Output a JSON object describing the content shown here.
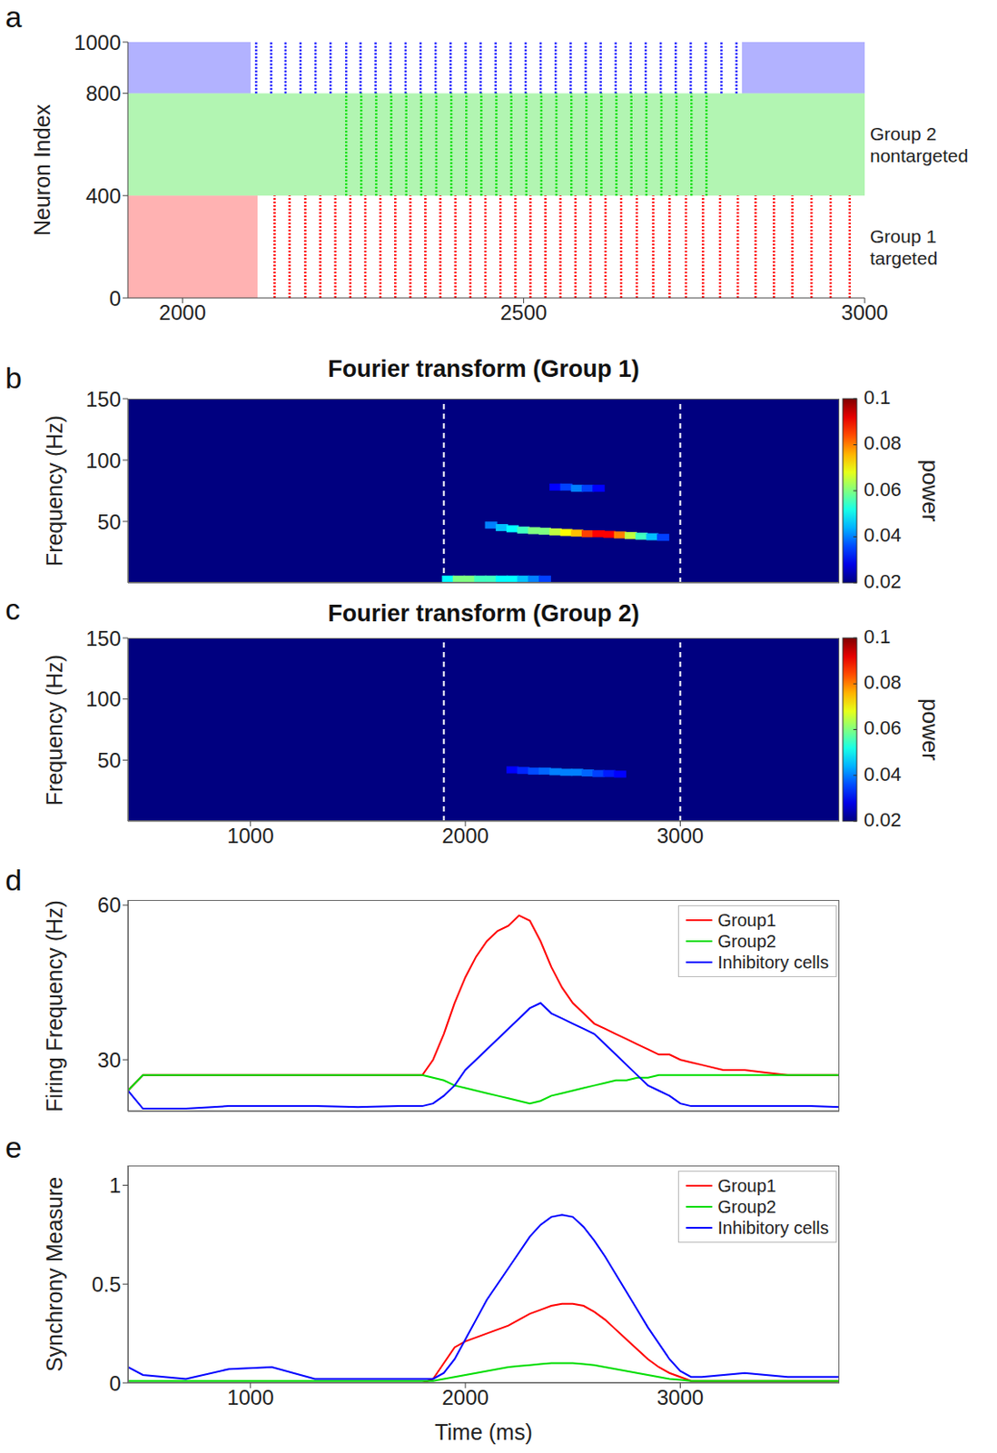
{
  "chart_data": [
    {
      "panel_label": "a",
      "type": "raster",
      "ylabel": "Neuron Index",
      "xlim": [
        1920,
        3000
      ],
      "xticks": [
        2000,
        2500,
        3000
      ],
      "ylim": [
        0,
        1000
      ],
      "yticks": [
        0,
        400,
        800,
        1000
      ],
      "series": [
        {
          "color": "#0000ff",
          "index_range": [
            800,
            1000
          ],
          "async": [
            [
              1920,
              2100
            ],
            [
              2820,
              3000
            ]
          ],
          "volleys": [
            2108,
            2130,
            2151,
            2173,
            2195,
            2217,
            2240,
            2261,
            2283,
            2305,
            2327,
            2349,
            2371,
            2393,
            2415,
            2437,
            2459,
            2481,
            2503,
            2525,
            2547,
            2569,
            2591,
            2613,
            2635,
            2657,
            2679,
            2701,
            2723,
            2745,
            2767,
            2790,
            2812
          ]
        },
        {
          "color": "#00dd00",
          "index_range": [
            400,
            800
          ],
          "label": "Group 2 nontargeted",
          "async": [
            [
              1920,
              3000
            ]
          ],
          "volleys": [
            2240,
            2262,
            2284,
            2306,
            2328,
            2350,
            2372,
            2394,
            2416,
            2438,
            2460,
            2482,
            2504,
            2526,
            2548,
            2570,
            2592,
            2614,
            2636,
            2658,
            2680,
            2702,
            2724,
            2746,
            2768
          ]
        },
        {
          "color": "#ff0000",
          "index_range": [
            0,
            400
          ],
          "label": "Group 1 targeted",
          "async": [
            [
              1920,
              2110
            ]
          ],
          "volleys": [
            2135,
            2157,
            2180,
            2202,
            2224,
            2246,
            2268,
            2290,
            2312,
            2334,
            2356,
            2378,
            2400,
            2422,
            2444,
            2466,
            2488,
            2510,
            2532,
            2554,
            2576,
            2598,
            2620,
            2643,
            2666,
            2690,
            2714,
            2738,
            2763,
            2788,
            2814,
            2840,
            2867,
            2894,
            2922,
            2950,
            2978
          ]
        }
      ]
    },
    {
      "panel_label": "b",
      "type": "heatmap",
      "title": "Fourier transform (Group 1)",
      "ylabel": "Frequency (Hz)",
      "xlim": [
        430,
        3740
      ],
      "ylim": [
        0,
        150
      ],
      "yticks": [
        50,
        100,
        150
      ],
      "tick_labels": "y",
      "vlines": [
        1900,
        3000
      ],
      "background": 0.02,
      "colorbar": {
        "label": "power",
        "range": [
          0.02,
          0.1
        ],
        "ticks": [
          0.02,
          0.04,
          0.06,
          0.08,
          0.1
        ]
      },
      "ridges": [
        {
          "time": [
            2120,
            2170,
            2220,
            2270,
            2320,
            2370,
            2420,
            2470,
            2520,
            2570,
            2620,
            2670,
            2720,
            2770,
            2820,
            2870,
            2920
          ],
          "freq": [
            47,
            45,
            44,
            43,
            42.5,
            42,
            41.5,
            41,
            40.5,
            40,
            40,
            39.5,
            39,
            38.5,
            38,
            37.5,
            37
          ],
          "power": [
            0.04,
            0.045,
            0.05,
            0.055,
            0.06,
            0.06,
            0.065,
            0.07,
            0.075,
            0.085,
            0.09,
            0.09,
            0.08,
            0.065,
            0.055,
            0.045,
            0.035
          ]
        },
        {
          "time": [
            1920,
            1970,
            2020,
            2070,
            2120,
            2170,
            2220,
            2270,
            2320,
            2370
          ],
          "freq": [
            3,
            3,
            3,
            3,
            3,
            3,
            3,
            3,
            3,
            3
          ],
          "power": [
            0.05,
            0.06,
            0.06,
            0.055,
            0.055,
            0.05,
            0.05,
            0.045,
            0.04,
            0.035
          ]
        },
        {
          "time": [
            2420,
            2470,
            2520,
            2570,
            2620
          ],
          "freq": [
            78,
            78,
            77,
            77,
            77
          ],
          "power": [
            0.03,
            0.035,
            0.04,
            0.035,
            0.03
          ]
        }
      ]
    },
    {
      "panel_label": "c",
      "type": "heatmap",
      "title": "Fourier transform (Group 2)",
      "ylabel": "Frequency (Hz)",
      "xlim": [
        430,
        3740
      ],
      "xticks": [
        1000,
        2000,
        3000
      ],
      "ylim": [
        0,
        150
      ],
      "yticks": [
        50,
        100,
        150
      ],
      "vlines": [
        1900,
        3000
      ],
      "background": 0.02,
      "colorbar": {
        "label": "power",
        "range": [
          0.02,
          0.1
        ],
        "ticks": [
          0.02,
          0.04,
          0.06,
          0.08,
          0.1
        ]
      },
      "ridges": [
        {
          "time": [
            2220,
            2270,
            2320,
            2370,
            2420,
            2470,
            2520,
            2570,
            2620,
            2670,
            2720
          ],
          "freq": [
            42,
            41.5,
            41,
            41,
            40.5,
            40,
            40,
            39.5,
            39,
            39,
            38.5
          ],
          "power": [
            0.03,
            0.033,
            0.036,
            0.038,
            0.04,
            0.04,
            0.04,
            0.038,
            0.035,
            0.032,
            0.03
          ]
        }
      ]
    },
    {
      "panel_label": "d",
      "type": "line",
      "ylabel": "Firing Frequency (Hz)",
      "xlim": [
        430,
        3740
      ],
      "ylim": [
        20,
        61
      ],
      "yticks": [
        30,
        60
      ],
      "tick_labels": "y",
      "legend": "upper right",
      "x": [
        430,
        500,
        700,
        900,
        1100,
        1300,
        1500,
        1700,
        1800,
        1850,
        1900,
        1950,
        2000,
        2050,
        2100,
        2150,
        2200,
        2250,
        2300,
        2350,
        2400,
        2450,
        2500,
        2550,
        2600,
        2650,
        2700,
        2750,
        2800,
        2850,
        2900,
        2950,
        3000,
        3050,
        3100,
        3200,
        3300,
        3400,
        3500,
        3600,
        3740
      ],
      "series": [
        {
          "name": "Group1",
          "color": "#ff0000",
          "values": [
            24,
            27,
            27,
            27,
            27,
            27,
            27,
            27,
            27,
            30,
            35,
            41,
            46,
            50,
            53,
            55,
            56,
            58,
            57,
            53,
            48,
            44,
            41,
            39,
            37,
            36,
            35,
            34,
            33,
            32,
            31,
            31,
            30,
            29.5,
            29,
            28,
            28,
            27.5,
            27,
            27,
            27
          ]
        },
        {
          "name": "Group2",
          "color": "#00dd00",
          "values": [
            24,
            27,
            27,
            27,
            27,
            27,
            27,
            27,
            27,
            26.5,
            26,
            25,
            24.5,
            24,
            23.5,
            23,
            22.5,
            22,
            21.5,
            22,
            23,
            23.5,
            24,
            24.5,
            25,
            25.5,
            26,
            26,
            26.5,
            26.5,
            27,
            27,
            27,
            27,
            27,
            27,
            27,
            27,
            27,
            27,
            27
          ]
        },
        {
          "name": "Inhibitory cells",
          "color": "#0000ff",
          "values": [
            24,
            20.5,
            20.5,
            21,
            21,
            21,
            20.8,
            21,
            21,
            21.5,
            23,
            25,
            28,
            30,
            32,
            34,
            36,
            38,
            40,
            41,
            39,
            38,
            37,
            36,
            35,
            33,
            31,
            29,
            27,
            25,
            24,
            23,
            21.5,
            21,
            21,
            21,
            21,
            21,
            21,
            21,
            20.8
          ]
        }
      ]
    },
    {
      "panel_label": "e",
      "type": "line",
      "ylabel": "Synchrony Measure",
      "xlabel": "Time (ms)",
      "xlim": [
        430,
        3740
      ],
      "xticks": [
        1000,
        2000,
        3000
      ],
      "ylim": [
        0,
        1.1
      ],
      "yticks": [
        0,
        0.5,
        1
      ],
      "legend": "upper right",
      "x": [
        430,
        500,
        700,
        900,
        1100,
        1300,
        1500,
        1700,
        1800,
        1850,
        1900,
        1950,
        2000,
        2050,
        2100,
        2150,
        2200,
        2250,
        2300,
        2350,
        2400,
        2450,
        2500,
        2550,
        2600,
        2650,
        2700,
        2750,
        2800,
        2850,
        2900,
        2950,
        3000,
        3050,
        3100,
        3200,
        3300,
        3400,
        3500,
        3600,
        3740
      ],
      "series": [
        {
          "name": "Group1",
          "color": "#ff0000",
          "values": [
            0,
            0,
            0,
            0,
            0,
            0,
            0,
            0,
            0,
            0.02,
            0.1,
            0.18,
            0.21,
            0.23,
            0.25,
            0.27,
            0.29,
            0.32,
            0.35,
            0.37,
            0.39,
            0.4,
            0.4,
            0.39,
            0.36,
            0.32,
            0.27,
            0.22,
            0.17,
            0.12,
            0.08,
            0.05,
            0.03,
            0.01,
            0.01,
            0.01,
            0.01,
            0.01,
            0.01,
            0.01,
            0.01
          ]
        },
        {
          "name": "Group2",
          "color": "#00dd00",
          "values": [
            0.01,
            0.01,
            0.01,
            0.01,
            0.01,
            0.01,
            0.01,
            0.01,
            0.01,
            0.01,
            0.02,
            0.03,
            0.04,
            0.05,
            0.06,
            0.07,
            0.08,
            0.085,
            0.09,
            0.095,
            0.1,
            0.1,
            0.1,
            0.095,
            0.09,
            0.08,
            0.07,
            0.06,
            0.05,
            0.04,
            0.03,
            0.02,
            0.015,
            0.01,
            0.01,
            0.01,
            0.01,
            0.01,
            0.01,
            0.01,
            0.01
          ]
        },
        {
          "name": "Inhibitory cells",
          "color": "#0000ff",
          "values": [
            0.08,
            0.04,
            0.02,
            0.07,
            0.08,
            0.02,
            0.02,
            0.02,
            0.02,
            0.02,
            0.05,
            0.12,
            0.22,
            0.32,
            0.42,
            0.5,
            0.58,
            0.66,
            0.74,
            0.8,
            0.84,
            0.85,
            0.84,
            0.79,
            0.72,
            0.64,
            0.55,
            0.46,
            0.37,
            0.28,
            0.2,
            0.12,
            0.06,
            0.03,
            0.03,
            0.04,
            0.05,
            0.04,
            0.03,
            0.03,
            0.03
          ]
        }
      ]
    }
  ]
}
